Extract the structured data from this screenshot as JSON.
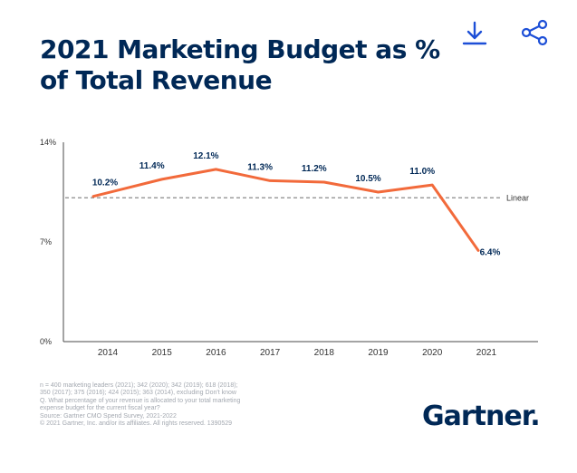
{
  "title": "2021 Marketing Budget as % of Total Revenue",
  "icons": {
    "download": "download-icon",
    "share": "share-icon"
  },
  "colors": {
    "title": "#002856",
    "series": "#f26a3b",
    "trendline": "#8a8a8a",
    "axis": "#4a4a4a"
  },
  "chart_data": {
    "type": "line",
    "title": "2021 Marketing Budget as % of Total Revenue",
    "xlabel": "",
    "ylabel": "",
    "x": [
      "2014",
      "2015",
      "2016",
      "2017",
      "2018",
      "2019",
      "2020",
      "2021"
    ],
    "series": [
      {
        "values": [
          10.2,
          11.4,
          12.1,
          11.3,
          11.2,
          10.5,
          11.0,
          6.4
        ],
        "labels": [
          "10.2%",
          "11.4%",
          "12.1%",
          "11.3%",
          "11.2%",
          "10.5%",
          "11.0%",
          "6.4%"
        ]
      }
    ],
    "yticks": [
      0,
      7,
      14
    ],
    "ytick_labels": [
      "0%",
      "7%",
      "14%"
    ],
    "ylim": [
      0,
      14
    ],
    "trendline": {
      "label": "Linear",
      "value": 10.1,
      "style": "dashed"
    },
    "grid": false,
    "legend": "none"
  },
  "footnote": [
    "n = 400 marketing leaders (2021); 342 (2020); 342 (2019); 618 (2018);",
    "350 (2017); 375 (2016); 424 (2015); 363 (2014), excluding Don't know",
    "Q. What percentage of your revenue is allocated to your total marketing",
    "expense budget for the current fiscal year?",
    "Source: Gartner CMO Spend Survey, 2021-2022",
    "© 2021 Gartner, Inc. and/or its affiliates. All rights reserved. 1390529"
  ],
  "brand": {
    "name": "Gartner",
    "dot": "."
  }
}
